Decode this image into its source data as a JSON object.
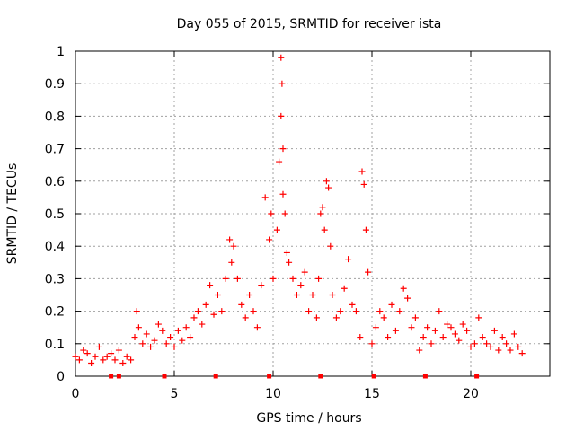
{
  "chart_data": {
    "type": "scatter",
    "title": "Day 055 of 2015, SRMTID for receiver ista",
    "xlabel": "GPS time / hours",
    "ylabel": "SRMTID / TECUs",
    "xlim": [
      0,
      24
    ],
    "ylim": [
      0,
      1
    ],
    "xticks": [
      0,
      5,
      10,
      15,
      20
    ],
    "xtick_labels": [
      "0",
      "5",
      "10",
      "15",
      "20"
    ],
    "yticks": [
      0,
      0.1,
      0.2,
      0.3,
      0.4,
      0.5,
      0.6,
      0.7,
      0.8,
      0.9,
      1
    ],
    "ytick_labels": [
      "0",
      "0.1",
      "0.2",
      "0.3",
      "0.4",
      "0.5",
      "0.6",
      "0.7",
      "0.8",
      "0.9",
      "1"
    ],
    "grid": true,
    "marker": "+",
    "series": [
      {
        "name": "SRMTID",
        "color": "#ff0000",
        "x": [
          0.0,
          0.2,
          0.4,
          0.6,
          0.8,
          1.0,
          1.2,
          1.4,
          1.6,
          1.8,
          2.0,
          2.2,
          2.4,
          2.6,
          2.8,
          3.0,
          3.1,
          3.2,
          3.4,
          3.6,
          3.8,
          4.0,
          4.2,
          4.4,
          4.6,
          4.8,
          5.0,
          5.2,
          5.4,
          5.6,
          5.8,
          6.0,
          6.2,
          6.4,
          6.6,
          6.8,
          7.0,
          7.2,
          7.4,
          7.6,
          7.8,
          7.9,
          8.0,
          8.2,
          8.4,
          8.6,
          8.8,
          9.0,
          9.2,
          9.4,
          9.6,
          9.8,
          9.9,
          10.0,
          10.2,
          10.3,
          10.4,
          10.4,
          10.45,
          10.5,
          10.5,
          10.6,
          10.7,
          10.8,
          11.0,
          11.2,
          11.4,
          11.6,
          11.8,
          12.0,
          12.2,
          12.3,
          12.4,
          12.5,
          12.6,
          12.7,
          12.8,
          12.9,
          13.0,
          13.2,
          13.4,
          13.6,
          13.8,
          14.0,
          14.2,
          14.4,
          14.5,
          14.6,
          14.7,
          14.8,
          15.0,
          15.2,
          15.4,
          15.6,
          15.8,
          16.0,
          16.2,
          16.4,
          16.6,
          16.8,
          17.0,
          17.2,
          17.4,
          17.6,
          17.8,
          18.0,
          18.2,
          18.4,
          18.6,
          18.8,
          19.0,
          19.2,
          19.4,
          19.6,
          19.8,
          20.0,
          20.2,
          20.4,
          20.6,
          20.8,
          21.0,
          21.2,
          21.4,
          21.6,
          21.8,
          22.0,
          22.2,
          22.4,
          22.6
        ],
        "values": [
          0.06,
          0.05,
          0.08,
          0.07,
          0.04,
          0.06,
          0.09,
          0.05,
          0.06,
          0.07,
          0.05,
          0.08,
          0.04,
          0.06,
          0.05,
          0.12,
          0.2,
          0.15,
          0.1,
          0.13,
          0.09,
          0.11,
          0.16,
          0.14,
          0.1,
          0.12,
          0.09,
          0.14,
          0.11,
          0.15,
          0.12,
          0.18,
          0.2,
          0.16,
          0.22,
          0.28,
          0.19,
          0.25,
          0.2,
          0.3,
          0.42,
          0.35,
          0.4,
          0.3,
          0.22,
          0.18,
          0.25,
          0.2,
          0.15,
          0.28,
          0.55,
          0.42,
          0.5,
          0.3,
          0.45,
          0.66,
          0.98,
          0.8,
          0.9,
          0.7,
          0.56,
          0.5,
          0.38,
          0.35,
          0.3,
          0.25,
          0.28,
          0.32,
          0.2,
          0.25,
          0.18,
          0.3,
          0.5,
          0.52,
          0.45,
          0.6,
          0.58,
          0.4,
          0.25,
          0.18,
          0.2,
          0.27,
          0.36,
          0.22,
          0.2,
          0.12,
          0.63,
          0.59,
          0.45,
          0.32,
          0.1,
          0.15,
          0.2,
          0.18,
          0.12,
          0.22,
          0.14,
          0.2,
          0.27,
          0.24,
          0.15,
          0.18,
          0.08,
          0.12,
          0.15,
          0.1,
          0.14,
          0.2,
          0.12,
          0.16,
          0.15,
          0.13,
          0.11,
          0.16,
          0.14,
          0.09,
          0.1,
          0.18,
          0.12,
          0.1,
          0.09,
          0.14,
          0.08,
          0.12,
          0.1,
          0.08,
          0.13,
          0.09,
          0.07
        ]
      }
    ],
    "baseline_markers_x": [
      1.8,
      2.2,
      4.5,
      7.1,
      9.8,
      12.4,
      15.1,
      17.7,
      20.3
    ]
  }
}
